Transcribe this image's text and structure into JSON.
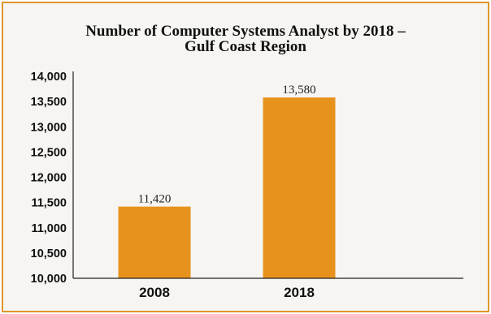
{
  "chart_data": {
    "type": "bar",
    "title_line1": "Number of Computer Systems Analyst by 2018 –",
    "title_line2": "Gulf Coast Region",
    "categories": [
      "2008",
      "2018"
    ],
    "values": [
      11420,
      13580
    ],
    "data_labels": [
      "11,420",
      "13,580"
    ],
    "yticks": [
      "10,000",
      "10,500",
      "11,000",
      "11,500",
      "12,000",
      "12,500",
      "13,000",
      "13,500",
      "14,000"
    ],
    "ylim": [
      10000,
      14000
    ],
    "xlabel": "",
    "ylabel": "",
    "grid": false,
    "legend": "none",
    "colors": {
      "bar": "#E8921E",
      "frame": "#E0962A",
      "background": "#F6F5F2",
      "axis": "#222222"
    }
  }
}
